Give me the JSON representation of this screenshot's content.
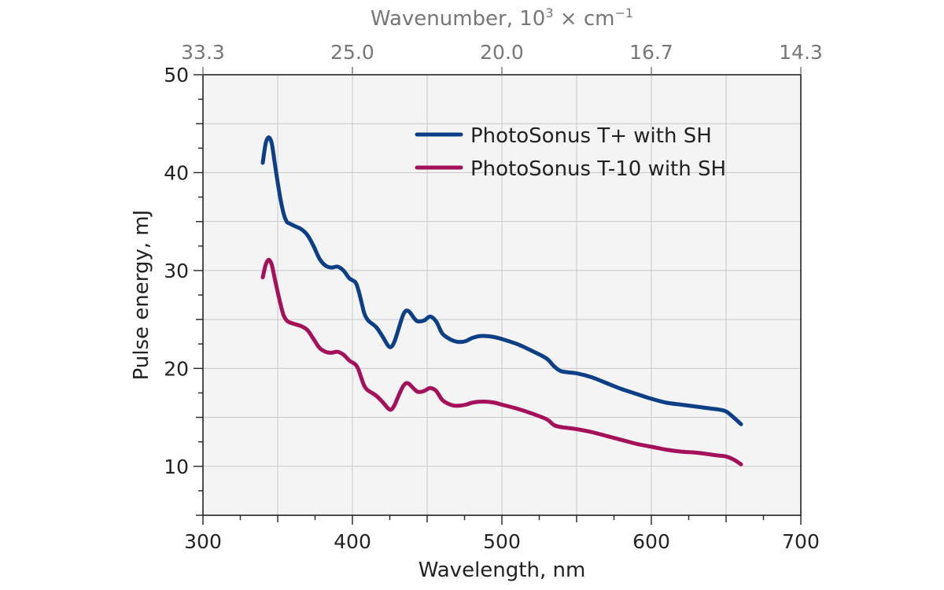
{
  "chart_data": {
    "type": "line",
    "xlabel": "Wavelength, nm",
    "ylabel": "Pulse energy, mJ",
    "top_xlabel_prefix": "Wavenumber, 10",
    "top_xlabel_suffix": " × cm",
    "top_xlabel_exp1": "3",
    "top_xlabel_exp2": "−1",
    "xlim": [
      300,
      700
    ],
    "ylim": [
      5,
      50
    ],
    "xticks": [
      300,
      400,
      500,
      600,
      700
    ],
    "yticks": [
      10,
      20,
      30,
      40,
      50
    ],
    "top_ticks": [
      {
        "wavelength": 300,
        "label": "33.3"
      },
      {
        "wavelength": 400,
        "label": "25.0"
      },
      {
        "wavelength": 500,
        "label": "20.0"
      },
      {
        "wavelength": 600,
        "label": "16.7"
      },
      {
        "wavelength": 700,
        "label": "14.3"
      }
    ],
    "grid": true,
    "legend_position": "top-right",
    "series": [
      {
        "name": "PhotoSonus T+ with SH",
        "color": "#0c3f86",
        "x": [
          340,
          342,
          344,
          346,
          348,
          350,
          352,
          354,
          356,
          358,
          362,
          366,
          370,
          374,
          378,
          382,
          386,
          390,
          394,
          398,
          402,
          404,
          406,
          408,
          410,
          412,
          416,
          420,
          424,
          426,
          428,
          430,
          432,
          434,
          436,
          438,
          440,
          442,
          444,
          448,
          452,
          456,
          460,
          464,
          468,
          472,
          476,
          480,
          485,
          490,
          495,
          500,
          510,
          520,
          530,
          535,
          540,
          550,
          560,
          570,
          580,
          590,
          600,
          610,
          620,
          630,
          640,
          645,
          650,
          655,
          660
        ],
        "y": [
          41.0,
          43.0,
          43.6,
          43.0,
          41.0,
          39.0,
          37.2,
          35.8,
          35.0,
          34.8,
          34.5,
          34.2,
          33.6,
          32.5,
          31.2,
          30.5,
          30.3,
          30.4,
          30.0,
          29.2,
          28.8,
          28.0,
          26.8,
          25.6,
          25.0,
          24.7,
          24.2,
          23.3,
          22.3,
          22.2,
          22.7,
          23.6,
          24.6,
          25.5,
          25.9,
          25.8,
          25.4,
          25.0,
          24.8,
          24.9,
          25.3,
          24.8,
          23.6,
          23.1,
          22.8,
          22.7,
          22.8,
          23.1,
          23.3,
          23.3,
          23.2,
          23.0,
          22.5,
          21.8,
          21.0,
          20.2,
          19.7,
          19.5,
          19.1,
          18.5,
          17.9,
          17.4,
          16.9,
          16.5,
          16.3,
          16.1,
          15.9,
          15.8,
          15.6,
          15.0,
          14.3
        ]
      },
      {
        "name": "PhotoSonus T-10 with SH",
        "color": "#a5105a",
        "x": [
          340,
          342,
          344,
          346,
          348,
          350,
          352,
          354,
          356,
          358,
          362,
          366,
          370,
          374,
          378,
          382,
          386,
          390,
          394,
          398,
          402,
          404,
          406,
          408,
          410,
          412,
          416,
          420,
          424,
          426,
          428,
          430,
          432,
          434,
          436,
          438,
          440,
          442,
          444,
          448,
          452,
          456,
          460,
          464,
          468,
          472,
          476,
          480,
          485,
          490,
          495,
          500,
          510,
          520,
          530,
          535,
          540,
          550,
          560,
          570,
          580,
          590,
          600,
          610,
          620,
          630,
          640,
          645,
          650,
          655,
          660
        ],
        "y": [
          29.3,
          30.6,
          31.1,
          30.6,
          29.2,
          27.8,
          26.5,
          25.4,
          24.9,
          24.7,
          24.5,
          24.3,
          23.9,
          23.0,
          22.1,
          21.7,
          21.6,
          21.7,
          21.4,
          20.8,
          20.4,
          19.9,
          19.0,
          18.2,
          17.8,
          17.6,
          17.2,
          16.6,
          15.9,
          15.8,
          16.2,
          16.9,
          17.6,
          18.2,
          18.5,
          18.4,
          18.1,
          17.8,
          17.6,
          17.7,
          18.0,
          17.7,
          16.8,
          16.4,
          16.2,
          16.2,
          16.3,
          16.5,
          16.6,
          16.6,
          16.5,
          16.3,
          15.9,
          15.4,
          14.8,
          14.2,
          14.0,
          13.8,
          13.5,
          13.1,
          12.7,
          12.3,
          12.0,
          11.7,
          11.5,
          11.4,
          11.2,
          11.1,
          11.0,
          10.7,
          10.2
        ]
      }
    ]
  }
}
